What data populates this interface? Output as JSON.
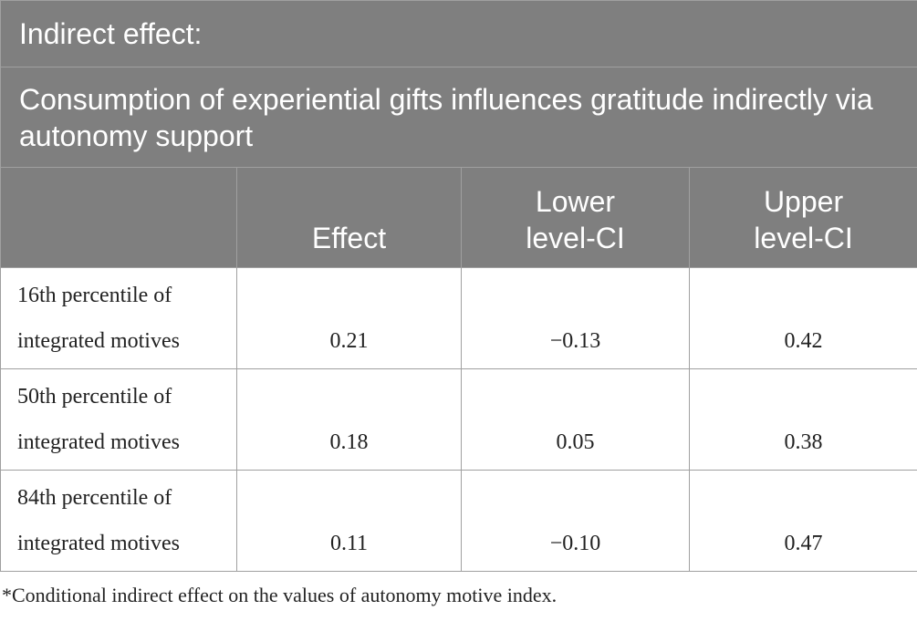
{
  "table": {
    "title": "Indirect effect:",
    "subtitle": "Consumption of experiential gifts influences gratitude indirectly via autonomy support",
    "columns": [
      "",
      "Effect",
      "Lower level-CI",
      "Upper level-CI"
    ],
    "rows": [
      {
        "label": "16th percentile of integrated motives",
        "effect": "0.21",
        "lower": "−0.13",
        "upper": "0.42"
      },
      {
        "label": "50th percentile of integrated motives",
        "effect": "0.18",
        "lower": "0.05",
        "upper": "0.38"
      },
      {
        "label": "84th percentile of integrated motives",
        "effect": "0.11",
        "lower": "−0.10",
        "upper": "0.47"
      }
    ]
  },
  "footnote": "*Conditional indirect effect on the values of autonomy motive index."
}
